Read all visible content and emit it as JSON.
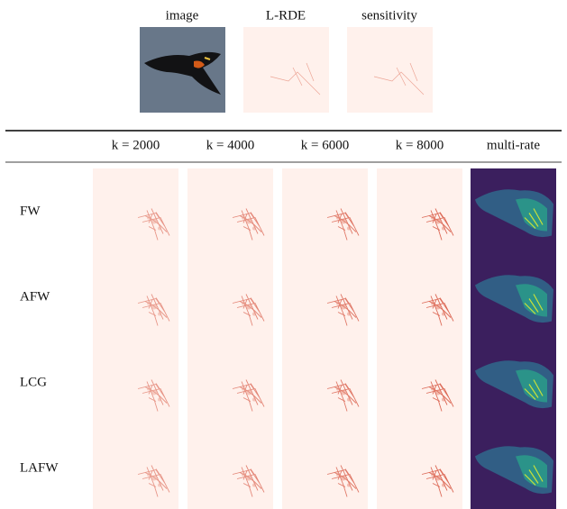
{
  "figure": {
    "top_labels": [
      "image",
      "L-RDE",
      "sensitivity"
    ]
  },
  "table": {
    "columns": [
      "k = 2000",
      "k = 4000",
      "k = 6000",
      "k = 8000",
      "multi-rate"
    ],
    "rows": [
      "FW",
      "AFW",
      "LCG",
      "LAFW"
    ]
  }
}
